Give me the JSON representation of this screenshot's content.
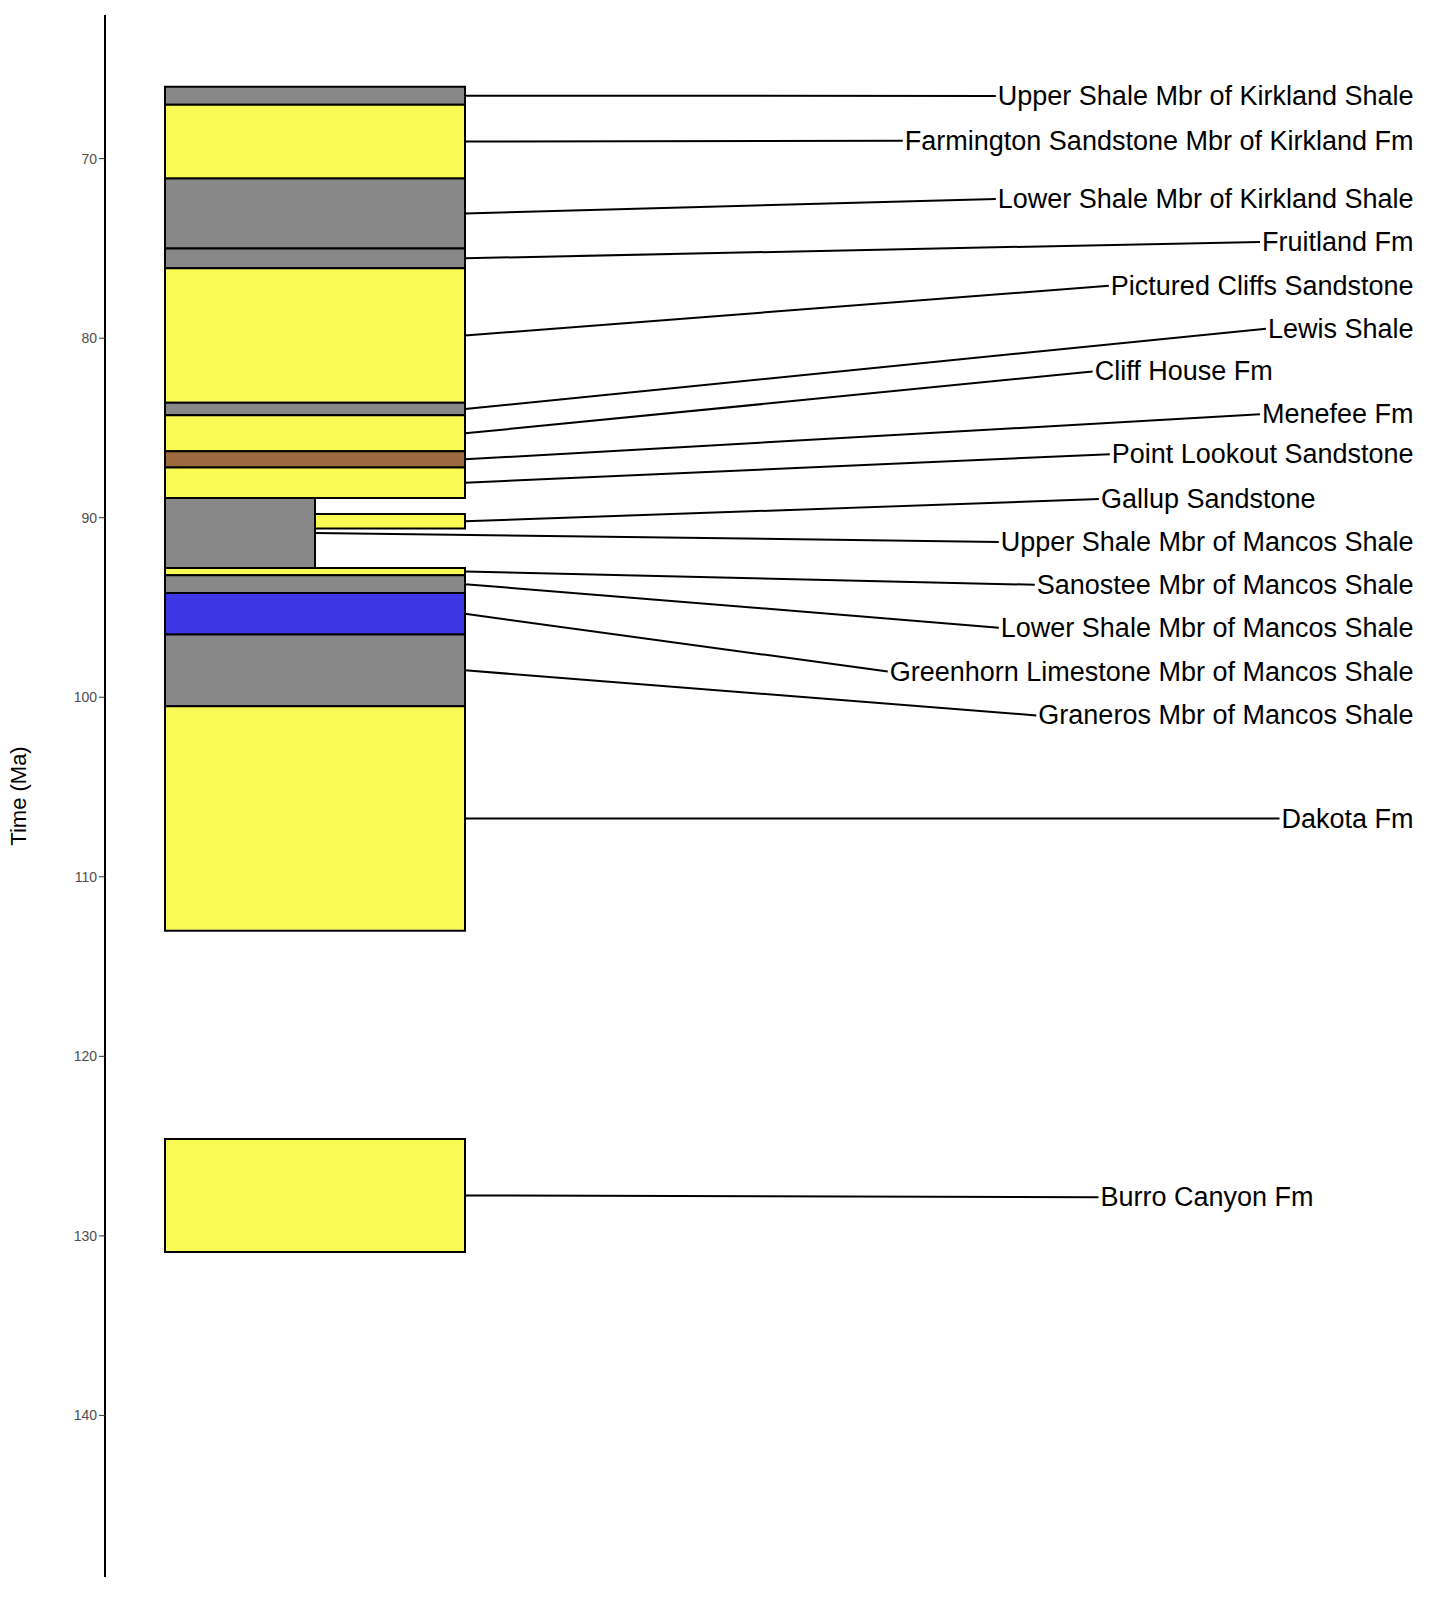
{
  "chart_data": {
    "type": "stratigraphic_column",
    "y_label": "Time (Ma)",
    "ylim": [
      62,
      149
    ],
    "yticks": [
      70,
      80,
      90,
      100,
      110,
      120,
      130,
      140
    ],
    "units": [
      {
        "name": "Upper Shale Mbr of Kirkland Shale",
        "top": 66.0,
        "base": 67.0,
        "x": [
          0,
          1
        ],
        "color": "#888888"
      },
      {
        "name": "Farmington Sandstone Mbr of Kirkland Fm",
        "top": 67.0,
        "base": 71.1,
        "x": [
          0,
          1
        ],
        "color": "#fafa55"
      },
      {
        "name": "Lower Shale Mbr of Kirkland Shale",
        "top": 71.1,
        "base": 75.0,
        "x": [
          0,
          1
        ],
        "color": "#888888"
      },
      {
        "name": "Fruitland Fm",
        "top": 75.0,
        "base": 76.1,
        "x": [
          0,
          1
        ],
        "color": "#888888"
      },
      {
        "name": "Pictured Cliffs Sandstone",
        "top": 76.1,
        "base": 83.6,
        "x": [
          0,
          1
        ],
        "color": "#fafa55"
      },
      {
        "name": "Lewis Shale",
        "top": 83.6,
        "base": 84.3,
        "x": [
          0,
          1
        ],
        "color": "#888888"
      },
      {
        "name": "Cliff House Fm",
        "top": 84.3,
        "base": 86.3,
        "x": [
          0,
          1
        ],
        "color": "#fafa55"
      },
      {
        "name": "Menefee Fm",
        "top": 86.3,
        "base": 87.2,
        "x": [
          0,
          1
        ],
        "color": "#9c6a3e"
      },
      {
        "name": "Point Lookout Sandstone",
        "top": 87.2,
        "base": 88.9,
        "x": [
          0,
          1
        ],
        "color": "#fafa55"
      },
      {
        "name": "Gallup Sandstone",
        "top": 89.8,
        "base": 90.6,
        "x": [
          0.5,
          1
        ],
        "color": "#fafa55"
      },
      {
        "name": "Upper Shale Mbr of Mancos Shale",
        "top": 88.9,
        "base": 92.8,
        "x": [
          0,
          0.5
        ],
        "color": "#888888"
      },
      {
        "name": "Sanostee Mbr of Mancos Shale",
        "top": 92.8,
        "base": 93.2,
        "x": [
          0,
          1
        ],
        "color": "#fafa55"
      },
      {
        "name": "Lower Shale Mbr of Mancos Shale",
        "top": 93.2,
        "base": 94.2,
        "x": [
          0,
          1
        ],
        "color": "#888888"
      },
      {
        "name": "Greenhorn Limestone Mbr of Mancos Shale",
        "top": 94.2,
        "base": 96.5,
        "x": [
          0,
          1
        ],
        "color": "#3c36e4"
      },
      {
        "name": "Graneros Mbr of Mancos Shale",
        "top": 96.5,
        "base": 100.5,
        "x": [
          0,
          1
        ],
        "color": "#888888"
      },
      {
        "name": "Dakota Fm",
        "top": 100.5,
        "base": 113.0,
        "x": [
          0,
          1
        ],
        "color": "#fafa55"
      },
      {
        "name": "Burro Canyon Fm",
        "top": 124.6,
        "base": 130.9,
        "x": [
          0,
          1
        ],
        "color": "#fafa55"
      }
    ]
  }
}
